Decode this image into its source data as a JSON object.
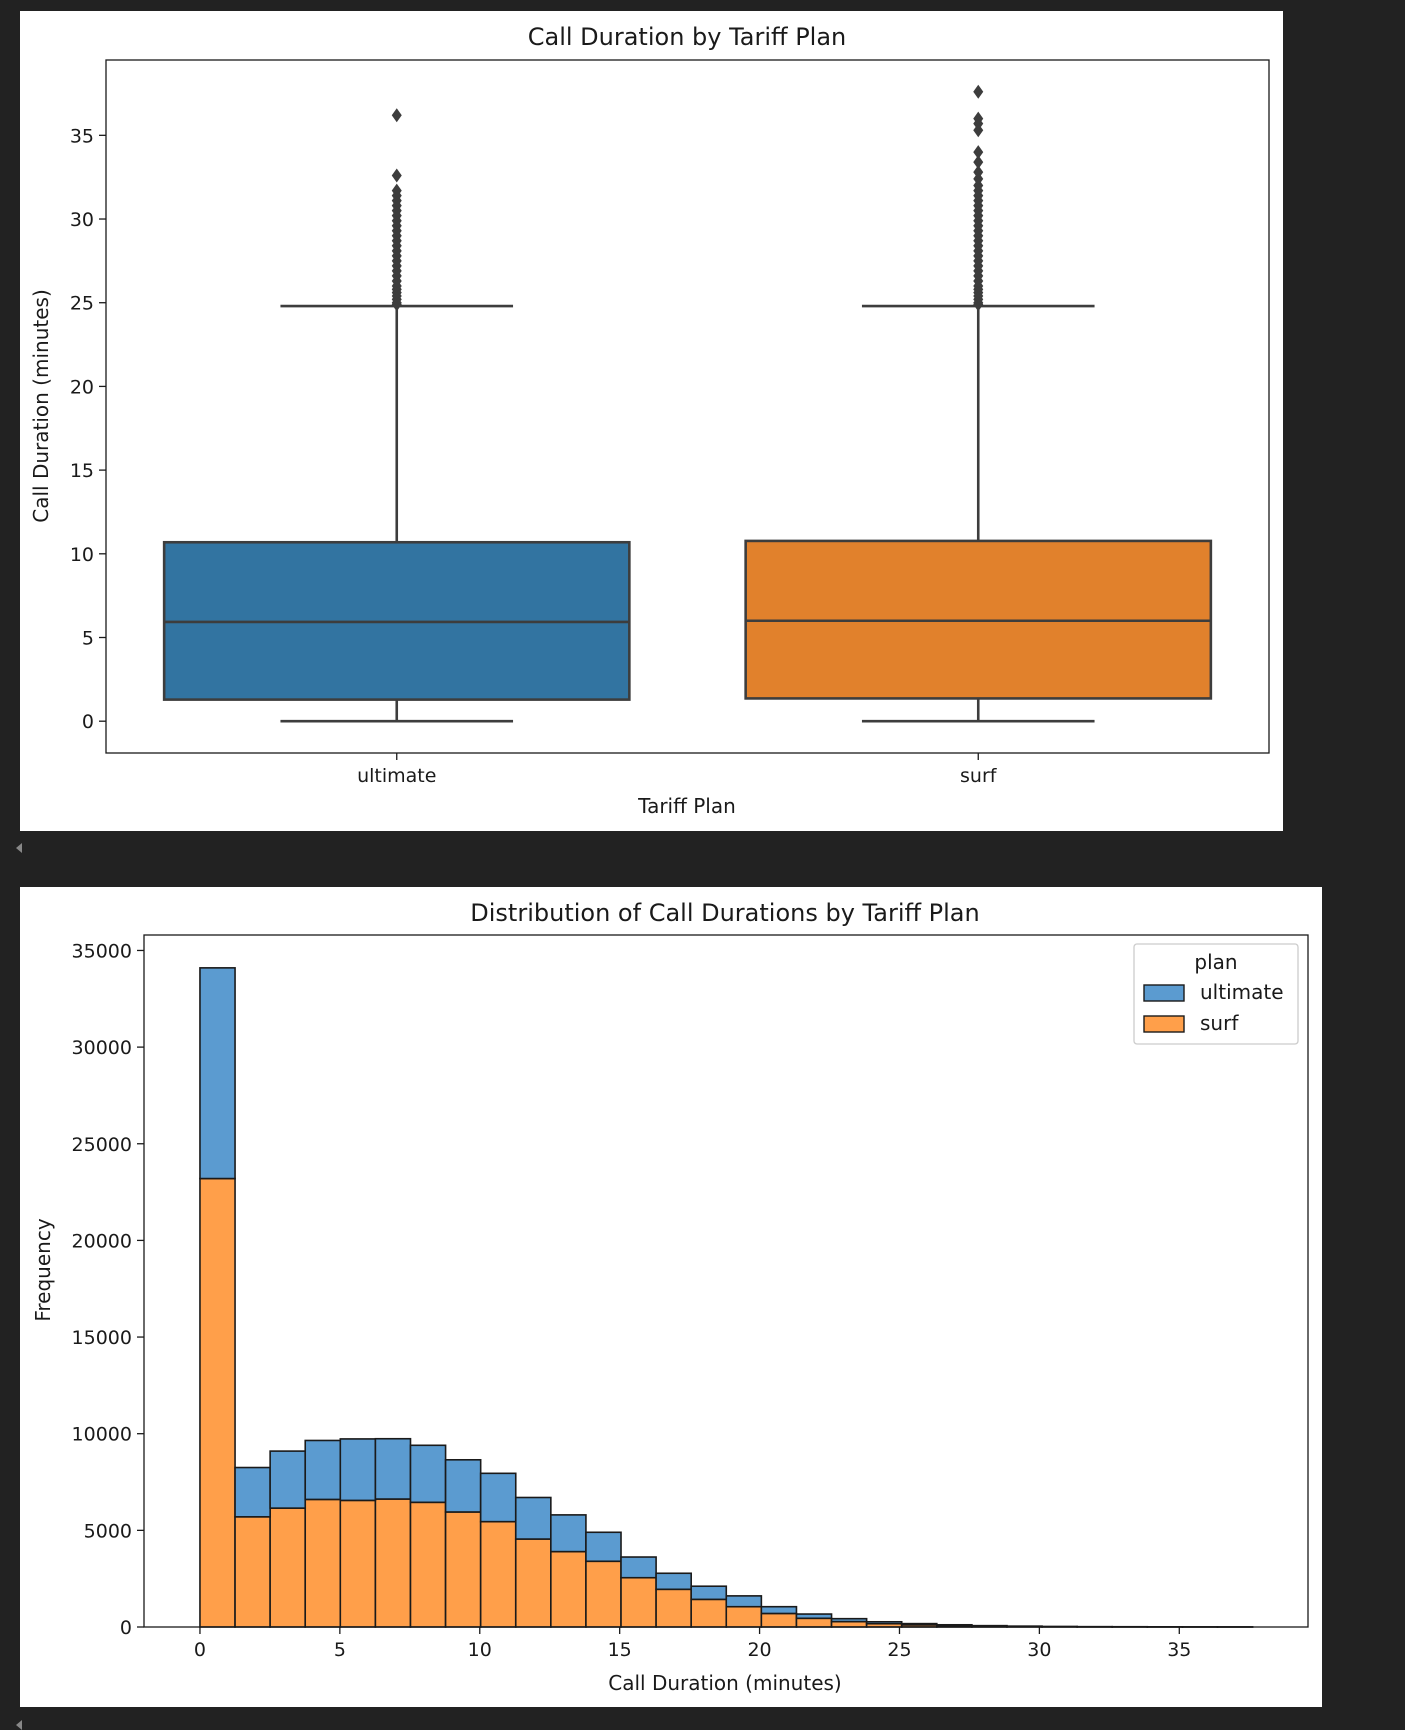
{
  "chart_data": [
    {
      "type": "box",
      "title": "Call Duration by Tariff Plan",
      "xlabel": "Tariff Plan",
      "ylabel": "Call Duration (minutes)",
      "ylim": [
        -1.9,
        39.5
      ],
      "yticks": [
        0,
        5,
        10,
        15,
        20,
        25,
        30,
        35
      ],
      "grid": false,
      "categories": [
        "ultimate",
        "surf"
      ],
      "boxes": [
        {
          "name": "ultimate",
          "color": "#3274a1",
          "whisker_low": 0,
          "q1": 1.29,
          "median": 5.93,
          "q3": 10.69,
          "whisker_high": 24.8,
          "outliers": [
            24.9,
            25.0,
            25.2,
            25.4,
            25.6,
            25.8,
            26.0,
            26.3,
            26.6,
            26.9,
            27.2,
            27.5,
            27.8,
            28.1,
            28.4,
            28.7,
            29.0,
            29.3,
            29.6,
            29.9,
            30.2,
            30.5,
            30.8,
            31.1,
            31.4,
            31.7,
            32.6,
            36.2
          ]
        },
        {
          "name": "surf",
          "color": "#e1812c",
          "whisker_low": 0,
          "q1": 1.36,
          "median": 6.0,
          "q3": 10.77,
          "whisker_high": 24.8,
          "outliers": [
            24.9,
            25.0,
            25.2,
            25.4,
            25.6,
            25.8,
            26.0,
            26.3,
            26.6,
            26.9,
            27.2,
            27.5,
            27.8,
            28.1,
            28.4,
            28.7,
            29.0,
            29.3,
            29.6,
            29.9,
            30.2,
            30.5,
            30.8,
            31.1,
            31.4,
            31.7,
            32.0,
            32.4,
            32.8,
            33.4,
            34.0,
            35.3,
            35.7,
            36.0,
            37.6
          ]
        }
      ]
    },
    {
      "type": "bar",
      "subtype": "stacked-histogram",
      "title": "Distribution of Call Durations by Tariff Plan",
      "xlabel": "Call Duration (minutes)",
      "ylabel": "Frequency",
      "xlim": [
        -2.0,
        39.6
      ],
      "ylim": [
        0,
        35800
      ],
      "xticks": [
        0,
        5,
        10,
        15,
        20,
        25,
        30,
        35
      ],
      "yticks": [
        0,
        5000,
        10000,
        15000,
        20000,
        25000,
        30000,
        35000
      ],
      "grid": false,
      "legend": {
        "title": "plan",
        "placement": "top-right"
      },
      "bin_edges": [
        0,
        1.254,
        2.508,
        3.762,
        5.016,
        6.27,
        7.524,
        8.778,
        10.032,
        11.286,
        12.54,
        13.794,
        15.048,
        16.302,
        17.556,
        18.81,
        20.064,
        21.318,
        22.572,
        23.826,
        25.08,
        26.334,
        27.588,
        28.842,
        30.096,
        31.35,
        32.604,
        33.858,
        35.112,
        36.366,
        37.62
      ],
      "series": [
        {
          "name": "surf",
          "color": "#ff9f4a",
          "values": [
            23200,
            5700,
            6150,
            6600,
            6550,
            6620,
            6450,
            5950,
            5450,
            4550,
            3900,
            3400,
            2550,
            1950,
            1430,
            1050,
            700,
            450,
            280,
            170,
            110,
            70,
            40,
            25,
            15,
            10,
            8,
            5,
            3,
            2
          ]
        },
        {
          "name": "ultimate",
          "color": "#5b9bd0",
          "values": [
            10900,
            2550,
            2950,
            3050,
            3180,
            3120,
            2950,
            2700,
            2500,
            2150,
            1900,
            1500,
            1070,
            830,
            680,
            560,
            350,
            220,
            150,
            100,
            65,
            45,
            30,
            20,
            12,
            8,
            6,
            4,
            2,
            1
          ]
        }
      ]
    }
  ]
}
